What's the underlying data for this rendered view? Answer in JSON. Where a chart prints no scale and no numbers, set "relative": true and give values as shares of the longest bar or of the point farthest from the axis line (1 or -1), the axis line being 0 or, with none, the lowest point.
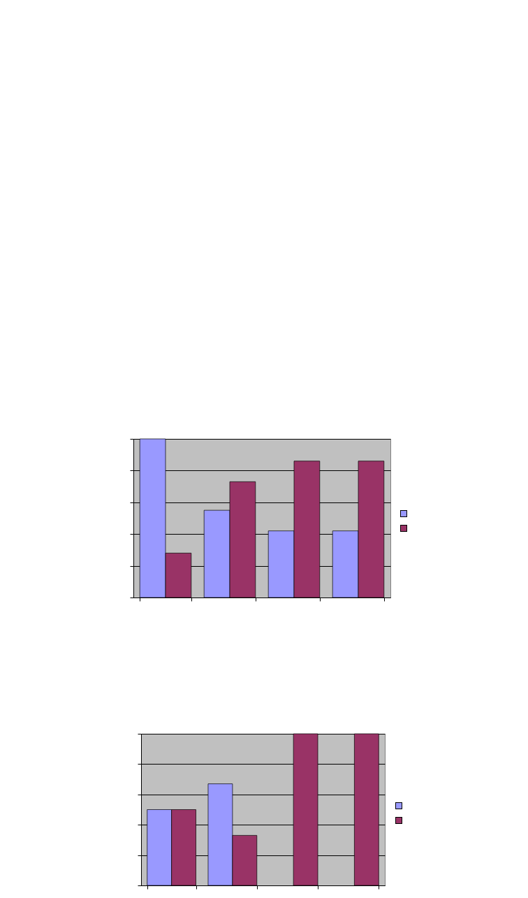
{
  "chart_data": [
    {
      "type": "bar",
      "relative": true,
      "categories": [
        null,
        null,
        null,
        null
      ],
      "grid": "y",
      "series": [
        {
          "color": "#9999ff",
          "values": [
            1,
            0.55,
            0.42,
            0.42
          ]
        },
        {
          "color": "#993366",
          "values": [
            0.28,
            0.73,
            0.86,
            0.86
          ]
        }
      ]
    },
    {
      "type": "bar",
      "relative": true,
      "categories": [
        null,
        null,
        null,
        null
      ],
      "grid": "y",
      "series": [
        {
          "color": "#9999ff",
          "values": [
            0.5,
            0.67,
            0,
            0
          ]
        },
        {
          "color": "#993366",
          "values": [
            0.5,
            0.33,
            1,
            1
          ]
        }
      ]
    }
  ]
}
